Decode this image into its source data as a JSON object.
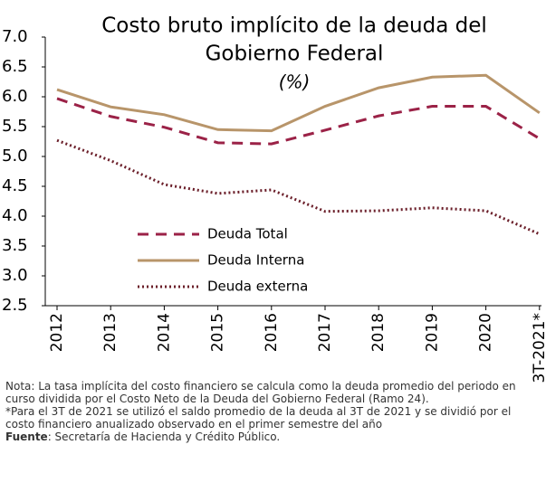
{
  "chart_data": {
    "type": "line",
    "title": [
      "Costo bruto implícito de la deuda del",
      "Gobierno Federal"
    ],
    "subtitle": "(%)",
    "categories": [
      "2012",
      "2013",
      "2014",
      "2015",
      "2016",
      "2017",
      "2018",
      "2019",
      "2020",
      "3T-2021*"
    ],
    "series": [
      {
        "name": "Deuda Total",
        "color": "#9b2247",
        "style": "dashed",
        "values": [
          5.97,
          5.67,
          5.49,
          5.23,
          5.21,
          5.44,
          5.68,
          5.84,
          5.84,
          5.3
        ]
      },
      {
        "name": "Deuda Interna",
        "color": "#b8956a",
        "style": "solid",
        "values": [
          6.12,
          5.83,
          5.7,
          5.45,
          5.43,
          5.84,
          6.15,
          6.33,
          6.36,
          5.73
        ]
      },
      {
        "name": "Deuda externa",
        "color": "#6b1f2a",
        "style": "dotted",
        "values": [
          5.27,
          4.93,
          4.53,
          4.38,
          4.44,
          4.08,
          4.09,
          4.14,
          4.09,
          3.7
        ]
      }
    ],
    "ylim": [
      2.5,
      7.0
    ],
    "yticks": [
      2.5,
      {
        "value": 3,
        "label": "3.0"
      },
      3.5,
      {
        "value": 4,
        "label": "4.0"
      },
      4.5,
      {
        "value": 5,
        "label": "5.0"
      },
      5.5,
      {
        "value": 6,
        "label": "6.0"
      },
      6.5,
      {
        "value": 7,
        "label": "7.0"
      }
    ],
    "grid": false,
    "notes": [
      "Nota: La tasa implícita del costo financiero se calcula como la deuda promedio del periodo en curso dividida por el Costo Neto de la Deuda del Gobierno Federal (Ramo 24).",
      "*Para el 3T de 2021 se utilizó el saldo promedio de la deuda al 3T de 2021 y se dividió por el costo financiero anualizado observado en el primer semestre del año"
    ],
    "source_label": "Fuente",
    "source": ": Secretaría de Hacienda y Crédito Público."
  }
}
